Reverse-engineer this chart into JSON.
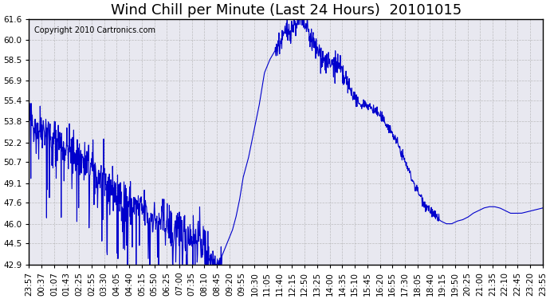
{
  "title": "Wind Chill per Minute (Last 24 Hours)  20101015",
  "copyright_text": "Copyright 2010 Cartronics.com",
  "line_color": "#0000CC",
  "background_color": "#ffffff",
  "plot_bg_color": "#e8e8f0",
  "grid_color": "#aaaaaa",
  "ylim": [
    42.9,
    61.6
  ],
  "yticks": [
    42.9,
    44.5,
    46.0,
    47.6,
    49.1,
    50.7,
    52.2,
    53.8,
    55.4,
    56.9,
    58.5,
    60.0,
    61.6
  ],
  "xtick_labels": [
    "23:57",
    "00:37",
    "01:07",
    "01:43",
    "02:25",
    "02:55",
    "03:30",
    "04:05",
    "04:40",
    "05:15",
    "05:50",
    "06:25",
    "07:00",
    "07:35",
    "08:10",
    "08:45",
    "09:20",
    "09:55",
    "10:30",
    "11:05",
    "11:40",
    "12:15",
    "12:50",
    "13:25",
    "14:00",
    "14:35",
    "15:10",
    "15:45",
    "16:20",
    "16:55",
    "17:30",
    "18:05",
    "18:40",
    "19:15",
    "19:50",
    "20:25",
    "21:00",
    "21:35",
    "22:10",
    "22:45",
    "23:20",
    "23:55"
  ],
  "title_fontsize": 13,
  "axis_fontsize": 7.5,
  "copyright_fontsize": 7
}
